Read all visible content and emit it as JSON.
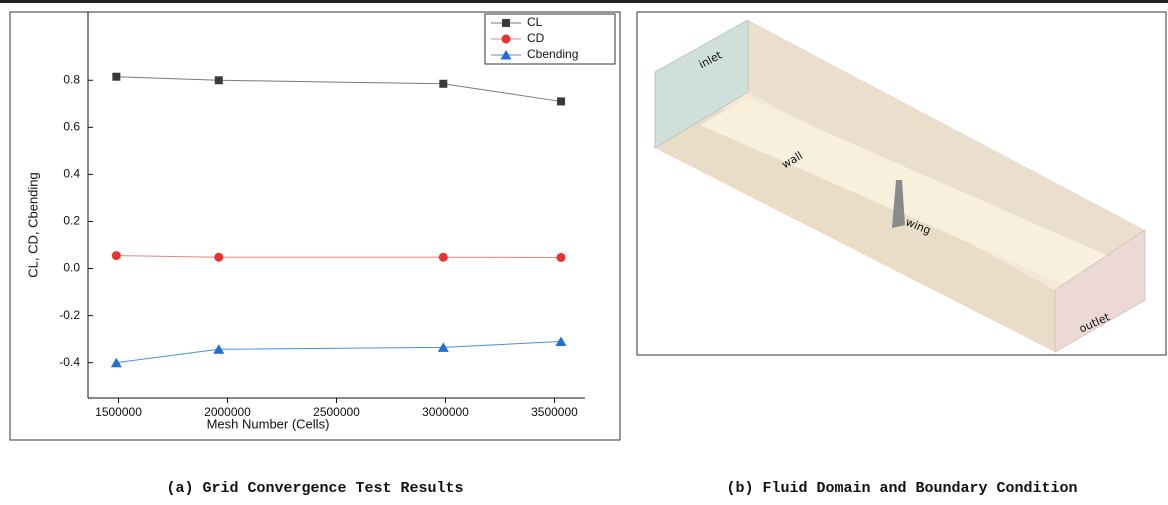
{
  "chart_data": {
    "type": "line",
    "x_label": "Mesh Number (Cells)",
    "y_label": "CL, CD, Cbending",
    "x": [
      1490000,
      1960000,
      2990000,
      3530000
    ],
    "series": [
      {
        "name": "CL",
        "color": "#3a3a3a",
        "line_color": "#7a7a7a",
        "marker": "square",
        "values": [
          0.815,
          0.8,
          0.785,
          0.71
        ]
      },
      {
        "name": "CD",
        "color": "#e8322f",
        "line_color": "#f08080",
        "marker": "circle",
        "values": [
          0.055,
          0.048,
          0.048,
          0.047
        ]
      },
      {
        "name": "Cbending",
        "color": "#1f6fd6",
        "line_color": "#4a8fe0",
        "marker": "triangle",
        "values": [
          -0.4,
          -0.343,
          -0.335,
          -0.31
        ]
      }
    ],
    "xlim": [
      1360000,
      3640000
    ],
    "xticks": [
      1500000,
      2000000,
      2500000,
      3000000,
      3500000
    ],
    "ylim": [
      -0.55,
      1.09
    ],
    "yticks": [
      -0.4,
      -0.2,
      {
        "value": 0,
        "label": "0.0"
      },
      0.2,
      0.4,
      0.6,
      0.8
    ],
    "legend": "top-right",
    "grid": false
  },
  "diagram": {
    "labels": [
      "inlet",
      "wall",
      "wing",
      "outlet"
    ]
  },
  "captions": [
    "(a) Grid Convergence Test Results",
    "(b) Fluid Domain and Boundary Condition"
  ]
}
